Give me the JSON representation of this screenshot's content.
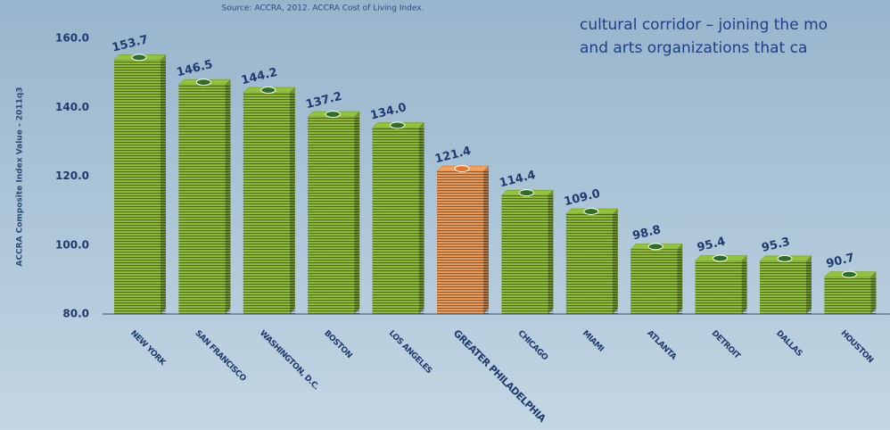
{
  "chart_data": {
    "type": "bar",
    "subtitle": "Source: ACCRA, 2012. ACCRA Cost of Living Index.",
    "annotations": [
      "cultural corridor – joining the mo",
      "and arts organizations that ca"
    ],
    "y_label": "ACCRA Composite Index Value - 2011q3",
    "categories": [
      "NEW YORK",
      "SAN FRANCISCO",
      "WASHINGTON, D.C.",
      "BOSTON",
      "LOS ANGELES",
      "GREATER PHILADELPHIA",
      "CHICAGO",
      "MIAMI",
      "ATLANTA",
      "DETROIT",
      "DALLAS",
      "HOUSTON"
    ],
    "values": [
      153.7,
      146.5,
      144.2,
      137.2,
      134.0,
      121.4,
      114.4,
      109.0,
      98.8,
      95.4,
      95.3,
      90.7
    ],
    "value_labels": [
      "153.7",
      "146.5",
      "144.2",
      "137.2",
      "134.0",
      "121.4",
      "114.4",
      "109.0",
      "98.8",
      "95.4",
      "95.3",
      "90.7"
    ],
    "colors": [
      "#93c23c",
      "#93c23c",
      "#93c23c",
      "#93c23c",
      "#93c23c",
      "#f4a15e",
      "#93c23c",
      "#93c23c",
      "#93c23c",
      "#93c23c",
      "#93c23c",
      "#93c23c"
    ],
    "ylim": [
      80,
      160
    ],
    "yticks": [
      {
        "value": 80,
        "label": "80.0"
      },
      {
        "value": 100,
        "label": "100.0"
      },
      {
        "value": 120,
        "label": "120.0"
      },
      {
        "value": 140,
        "label": "140.0"
      },
      {
        "value": 160,
        "label": "160.0"
      }
    ]
  }
}
